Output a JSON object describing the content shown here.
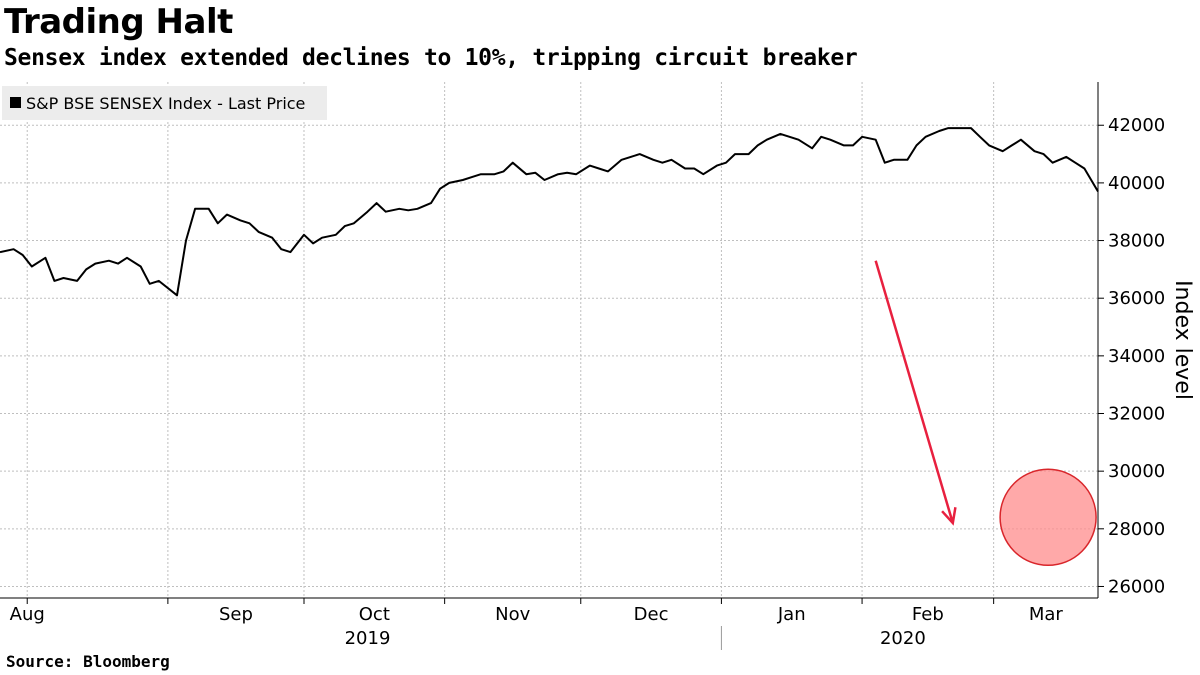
{
  "header": {
    "title": "Trading Halt",
    "subtitle": "Sensex index extended declines to 10%, tripping circuit breaker"
  },
  "footer": {
    "source": "Source: Bloomberg"
  },
  "colors": {
    "line": "#000000",
    "arrow": "#e8203f",
    "highlight_fill": "#ff8c8c",
    "highlight_stroke": "#d9262b",
    "grid": "#bfbfbf",
    "legend_bg": "#ececec"
  },
  "chart_data": {
    "type": "line",
    "legend": {
      "label": "S&P BSE SENSEX Index - Last Price",
      "placement": "top-left"
    },
    "ylabel": "Index level",
    "yaxis_side": "right",
    "ylim": [
      25600,
      43500
    ],
    "yticks": [
      26000,
      28000,
      30000,
      32000,
      34000,
      36000,
      38000,
      40000,
      42000
    ],
    "grid": true,
    "xlim": [
      "2019-07-26",
      "2020-03-24"
    ],
    "month_labels": [
      {
        "label": "Aug",
        "date": "2019-08-01"
      },
      {
        "label": "Sep",
        "date": "2019-09-01"
      },
      {
        "label": "Oct",
        "date": "2019-10-01"
      },
      {
        "label": "Nov",
        "date": "2019-11-01"
      },
      {
        "label": "Dec",
        "date": "2019-12-01"
      },
      {
        "label": "Jan",
        "date": "2020-01-01"
      },
      {
        "label": "Feb",
        "date": "2020-02-01"
      },
      {
        "label": "Mar",
        "date": "2020-03-01"
      }
    ],
    "year_labels": [
      {
        "label": "2019",
        "date": "2019-10-15"
      },
      {
        "label": "2020",
        "date": "2020-02-10"
      }
    ],
    "year_divider": "2020-01-01",
    "annotations": {
      "arrow": {
        "from": {
          "date": "2020-02-04",
          "value": 37300
        },
        "to": {
          "date": "2020-02-21",
          "value": 28200
        }
      },
      "circle": {
        "date": "2020-03-13",
        "value": 28400
      }
    },
    "series": [
      {
        "points": [
          [
            "2019-07-26",
            37600
          ],
          [
            "2019-07-29",
            37700
          ],
          [
            "2019-07-31",
            37500
          ],
          [
            "2019-08-02",
            37100
          ],
          [
            "2019-08-05",
            37400
          ],
          [
            "2019-08-07",
            36600
          ],
          [
            "2019-08-09",
            36700
          ],
          [
            "2019-08-12",
            36600
          ],
          [
            "2019-08-14",
            37000
          ],
          [
            "2019-08-16",
            37200
          ],
          [
            "2019-08-19",
            37300
          ],
          [
            "2019-08-21",
            37200
          ],
          [
            "2019-08-23",
            37400
          ],
          [
            "2019-08-26",
            37100
          ],
          [
            "2019-08-28",
            36500
          ],
          [
            "2019-08-30",
            36600
          ],
          [
            "2019-09-03",
            36100
          ],
          [
            "2019-09-05",
            38000
          ],
          [
            "2019-09-07",
            39100
          ],
          [
            "2019-09-10",
            39100
          ],
          [
            "2019-09-12",
            38600
          ],
          [
            "2019-09-14",
            38900
          ],
          [
            "2019-09-17",
            38700
          ],
          [
            "2019-09-19",
            38600
          ],
          [
            "2019-09-21",
            38300
          ],
          [
            "2019-09-24",
            38100
          ],
          [
            "2019-09-26",
            37700
          ],
          [
            "2019-09-28",
            37600
          ],
          [
            "2019-10-01",
            38200
          ],
          [
            "2019-10-03",
            37900
          ],
          [
            "2019-10-05",
            38100
          ],
          [
            "2019-10-08",
            38200
          ],
          [
            "2019-10-10",
            38500
          ],
          [
            "2019-10-12",
            38600
          ],
          [
            "2019-10-15",
            39000
          ],
          [
            "2019-10-17",
            39300
          ],
          [
            "2019-10-19",
            39000
          ],
          [
            "2019-10-22",
            39100
          ],
          [
            "2019-10-24",
            39050
          ],
          [
            "2019-10-26",
            39100
          ],
          [
            "2019-10-29",
            39300
          ],
          [
            "2019-10-31",
            39800
          ],
          [
            "2019-11-02",
            40000
          ],
          [
            "2019-11-05",
            40100
          ],
          [
            "2019-11-07",
            40200
          ],
          [
            "2019-11-09",
            40300
          ],
          [
            "2019-11-12",
            40300
          ],
          [
            "2019-11-14",
            40400
          ],
          [
            "2019-11-16",
            40700
          ],
          [
            "2019-11-19",
            40300
          ],
          [
            "2019-11-21",
            40350
          ],
          [
            "2019-11-23",
            40100
          ],
          [
            "2019-11-26",
            40300
          ],
          [
            "2019-11-28",
            40350
          ],
          [
            "2019-11-30",
            40300
          ],
          [
            "2019-12-03",
            40600
          ],
          [
            "2019-12-05",
            40500
          ],
          [
            "2019-12-07",
            40400
          ],
          [
            "2019-12-10",
            40800
          ],
          [
            "2019-12-12",
            40900
          ],
          [
            "2019-12-14",
            41000
          ],
          [
            "2019-12-17",
            40800
          ],
          [
            "2019-12-19",
            40700
          ],
          [
            "2019-12-21",
            40800
          ],
          [
            "2019-12-24",
            40500
          ],
          [
            "2019-12-26",
            40500
          ],
          [
            "2019-12-28",
            40300
          ],
          [
            "2019-12-31",
            40600
          ],
          [
            "2020-01-02",
            40700
          ],
          [
            "2020-01-04",
            41000
          ],
          [
            "2020-01-07",
            41000
          ],
          [
            "2020-01-09",
            41300
          ],
          [
            "2020-01-11",
            41500
          ],
          [
            "2020-01-14",
            41700
          ],
          [
            "2020-01-16",
            41600
          ],
          [
            "2020-01-18",
            41500
          ],
          [
            "2020-01-21",
            41200
          ],
          [
            "2020-01-23",
            41600
          ],
          [
            "2020-01-25",
            41500
          ],
          [
            "2020-01-28",
            41300
          ],
          [
            "2020-01-30",
            41300
          ],
          [
            "2020-02-01",
            41600
          ],
          [
            "2020-02-04",
            41500
          ],
          [
            "2020-02-06",
            40700
          ],
          [
            "2020-02-08",
            40800
          ],
          [
            "2020-02-11",
            40800
          ],
          [
            "2020-02-13",
            41300
          ],
          [
            "2020-02-15",
            41600
          ],
          [
            "2020-02-18",
            41800
          ],
          [
            "2020-02-20",
            41900
          ],
          [
            "2020-02-22",
            41900
          ],
          [
            "2020-02-25",
            41900
          ],
          [
            "2020-02-27",
            41600
          ],
          [
            "2020-02-29",
            41300
          ],
          [
            "2020-03-03",
            41100
          ],
          [
            "2020-03-05",
            41300
          ],
          [
            "2020-03-07",
            41500
          ],
          [
            "2020-03-10",
            41100
          ],
          [
            "2020-03-12",
            41000
          ],
          [
            "2020-03-14",
            40700
          ],
          [
            "2020-03-17",
            40900
          ],
          [
            "2020-03-19",
            40700
          ],
          [
            "2020-03-21",
            40500
          ],
          [
            "2020-03-24",
            39700
          ]
        ]
      }
    ]
  }
}
